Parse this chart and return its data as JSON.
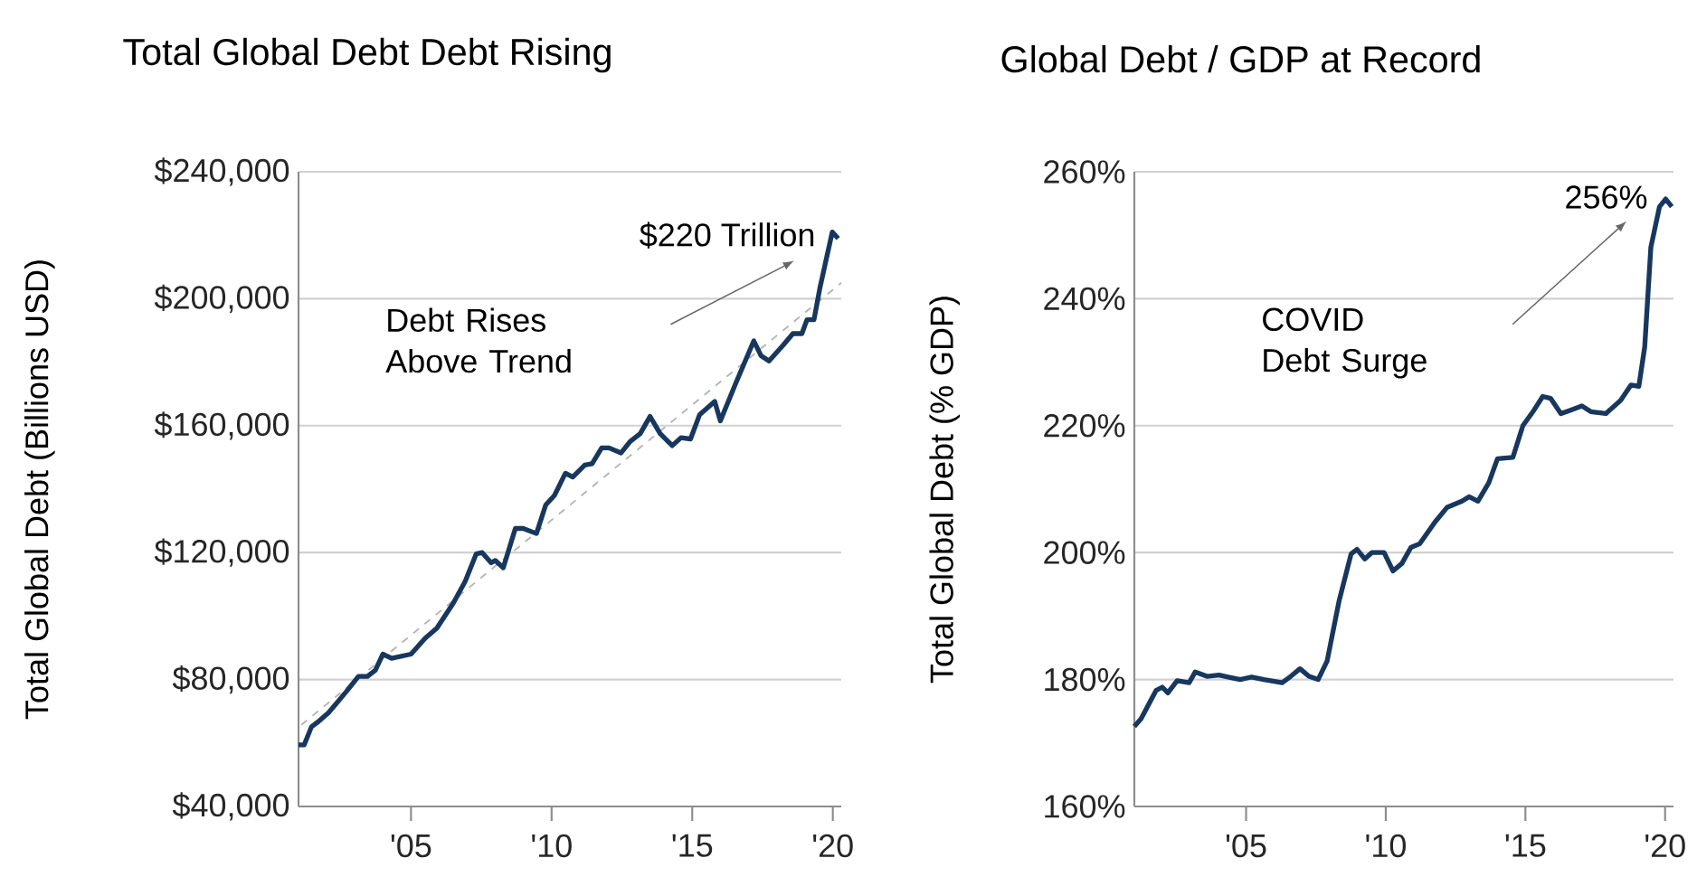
{
  "chart_data": [
    {
      "type": "line",
      "title": "Total Global Debt Debt Rising",
      "ylabel": "Total Global Debt (Billions USD)",
      "xlim": [
        2001,
        2020.3
      ],
      "ylim": [
        40000,
        240000
      ],
      "xticks": [
        {
          "value": 2005,
          "label": "'05"
        },
        {
          "value": 2010,
          "label": "'10"
        },
        {
          "value": 2015,
          "label": "'15"
        },
        {
          "value": 2020,
          "label": "'20"
        }
      ],
      "yticks": [
        {
          "value": 40000,
          "label": "$40,000"
        },
        {
          "value": 80000,
          "label": "$80,000"
        },
        {
          "value": 120000,
          "label": "$120,000"
        },
        {
          "value": 160000,
          "label": "$160,000"
        },
        {
          "value": 200000,
          "label": "$200,000"
        },
        {
          "value": 240000,
          "label": "$240,000"
        }
      ],
      "grid": "y",
      "annotations": [
        "Debt Rises Above Trend",
        {
          "text": "$220 Trillion",
          "x": 2020,
          "y": 220000
        }
      ],
      "series": [
        {
          "type": "line",
          "color": "#b4b4b4",
          "line_style": "dashed",
          "x": [
            2001.1,
            2020.3
          ],
          "values": [
            65700,
            205000
          ]
        },
        {
          "color": "#17375e",
          "x": [
            2001.0,
            2001.2,
            2001.46,
            2001.7,
            2002.06,
            2002.34,
            2002.7,
            2003.13,
            2003.45,
            2003.73,
            2004.0,
            2004.31,
            2005.0,
            2005.5,
            2005.92,
            2006.5,
            2006.93,
            2007.32,
            2007.53,
            2007.85,
            2008.0,
            2008.28,
            2008.71,
            2008.99,
            2009.46,
            2009.79,
            2010.1,
            2010.49,
            2010.75,
            2011.18,
            2011.44,
            2011.78,
            2012.04,
            2012.47,
            2012.79,
            2013.15,
            2013.5,
            2013.86,
            2014.29,
            2014.6,
            2014.94,
            2015.26,
            2015.8,
            2016.0,
            2016.55,
            2017.19,
            2017.45,
            2017.73,
            2018.22,
            2018.58,
            2018.9,
            2019.08,
            2019.33,
            2019.55,
            2019.98,
            2020.19
          ],
          "values": [
            59400,
            59400,
            65100,
            66700,
            69500,
            72400,
            76200,
            81000,
            81000,
            82900,
            88000,
            86700,
            88000,
            93000,
            96200,
            104000,
            111000,
            119600,
            120000,
            116800,
            117500,
            115200,
            127600,
            127600,
            126000,
            135000,
            138000,
            145000,
            143800,
            147600,
            148000,
            153000,
            153000,
            151400,
            155000,
            157500,
            162900,
            157500,
            153700,
            156200,
            155800,
            163400,
            167600,
            161500,
            173400,
            186700,
            182000,
            180400,
            185200,
            189000,
            189000,
            193400,
            193400,
            203800,
            221000,
            219000
          ]
        }
      ]
    },
    {
      "type": "line",
      "title": "Global Debt / GDP at Record",
      "ylabel": "Total Global Debt (% GDP)",
      "xlim": [
        2001,
        2020.3
      ],
      "ylim": [
        160,
        260
      ],
      "xticks": [
        {
          "value": 2005,
          "label": "'05"
        },
        {
          "value": 2010,
          "label": "'10"
        },
        {
          "value": 2015,
          "label": "'15"
        },
        {
          "value": 2020,
          "label": "'20"
        }
      ],
      "yticks": [
        {
          "value": 160,
          "label": "160%"
        },
        {
          "value": 180,
          "label": "180%"
        },
        {
          "value": 200,
          "label": "200%"
        },
        {
          "value": 220,
          "label": "220%"
        },
        {
          "value": 240,
          "label": "240%"
        },
        {
          "value": 260,
          "label": "260%"
        }
      ],
      "grid": "y",
      "annotations": [
        "COVID Debt Surge",
        {
          "text": "256%",
          "x": 2020,
          "y": 256
        }
      ],
      "series": [
        {
          "color": "#17375e",
          "x": [
            2001.0,
            2001.24,
            2001.78,
            2002.0,
            2002.2,
            2002.53,
            2002.96,
            2003.18,
            2003.6,
            2004.03,
            2004.36,
            2004.79,
            2005.2,
            2005.64,
            2006.29,
            2006.6,
            2006.93,
            2007.25,
            2007.58,
            2007.9,
            2008.33,
            2008.76,
            2008.97,
            2009.25,
            2009.5,
            2009.94,
            2010.26,
            2010.58,
            2010.9,
            2011.22,
            2011.76,
            2012.19,
            2012.73,
            2012.98,
            2013.3,
            2013.69,
            2014.0,
            2014.55,
            2014.91,
            2015.3,
            2015.62,
            2015.9,
            2016.27,
            2016.59,
            2017.02,
            2017.34,
            2017.88,
            2018.41,
            2018.78,
            2019.06,
            2019.27,
            2019.49,
            2019.8,
            2020.02,
            2020.24
          ],
          "values": [
            172.6,
            173.8,
            178.3,
            178.8,
            177.9,
            179.8,
            179.5,
            181.2,
            180.5,
            180.7,
            180.4,
            180,
            180.4,
            180,
            179.5,
            180.5,
            181.7,
            180.5,
            180,
            182.9,
            192.4,
            199.8,
            200.5,
            199,
            200,
            200,
            197.1,
            198.3,
            200.8,
            201.4,
            204.8,
            207.1,
            208.1,
            208.8,
            208.1,
            211,
            214.8,
            215,
            220,
            222.4,
            224.6,
            224.3,
            221.9,
            222.4,
            223.1,
            222.2,
            221.9,
            224,
            226.4,
            226.2,
            232.4,
            248.1,
            254.5,
            255.7,
            254.5
          ]
        }
      ]
    }
  ]
}
